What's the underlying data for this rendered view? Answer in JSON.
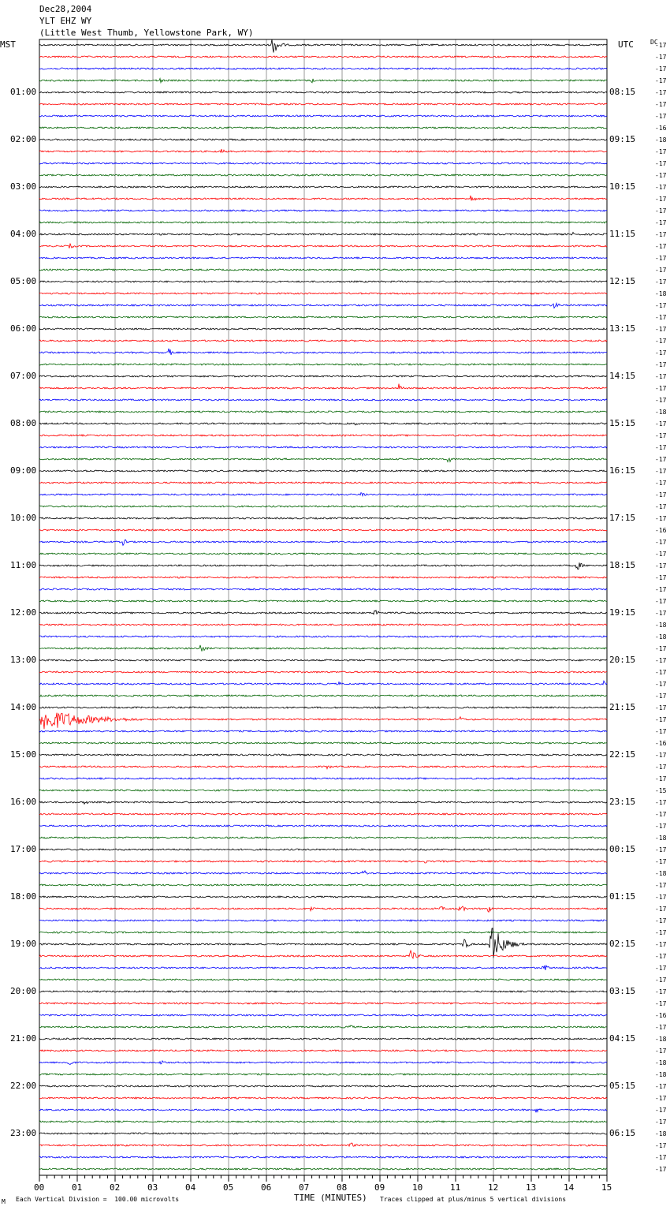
{
  "header": {
    "date": "Dec28,2004",
    "station": "YLT EHZ WY",
    "location": "(Little West Thumb, Yellowstone Park, WY)"
  },
  "axis_labels": {
    "left": "MST",
    "right": "UTC",
    "dc": "DC"
  },
  "footer": {
    "scale": "Each Vertical Division =  100.00 microvolts",
    "xlabel": "TIME (MINUTES)",
    "clip": "Traces clipped at plus/minus 5 vertical divisions",
    "corner": "M"
  },
  "chart_data": {
    "type": "line",
    "title": "YLT EHZ WY",
    "xlabel": "TIME (MINUTES)",
    "xlim": [
      0,
      15
    ],
    "x_ticks": [
      "00",
      "01",
      "02",
      "03",
      "04",
      "05",
      "06",
      "07",
      "08",
      "09",
      "10",
      "11",
      "12",
      "13",
      "14",
      "15"
    ],
    "trace_count": 96,
    "trace_colors": [
      "#000000",
      "#ff0000",
      "#0000ff",
      "#006400"
    ],
    "mst_labels": [
      "01:00",
      "02:00",
      "03:00",
      "04:00",
      "05:00",
      "06:00",
      "07:00",
      "08:00",
      "09:00",
      "10:00",
      "11:00",
      "12:00",
      "13:00",
      "14:00",
      "15:00",
      "16:00",
      "17:00",
      "18:00",
      "19:00",
      "20:00",
      "21:00",
      "22:00",
      "23:00"
    ],
    "utc_labels": [
      "08:15",
      "09:15",
      "10:15",
      "11:15",
      "12:15",
      "13:15",
      "14:15",
      "15:15",
      "16:15",
      "17:15",
      "18:15",
      "19:15",
      "20:15",
      "21:15",
      "22:15",
      "23:15",
      "00:15",
      "01:15",
      "02:15",
      "03:15",
      "04:15",
      "05:15",
      "06:15"
    ],
    "dc_offsets": [
      "-17",
      "-17",
      "-17",
      "-17",
      "-17",
      "-17",
      "-17",
      "-16",
      "-18",
      "-17",
      "-17",
      "-17",
      "-17",
      "-17",
      "-17",
      "-17",
      "-17",
      "-17",
      "-17",
      "-17",
      "-17",
      "-18",
      "-17",
      "-17",
      "-17",
      "-17",
      "-17",
      "-17",
      "-17",
      "-17",
      "-17",
      "-18",
      "-17",
      "-17",
      "-17",
      "-17",
      "-17",
      "-17",
      "-17",
      "-17",
      "-17",
      "-16",
      "-17",
      "-17",
      "-17",
      "-17",
      "-17",
      "-17",
      "-17",
      "-18",
      "-18",
      "-17",
      "-17",
      "-17",
      "-17",
      "-17",
      "-17",
      "-17",
      "-17",
      "-16",
      "-17",
      "-17",
      "-17",
      "-15",
      "-17",
      "-17",
      "-17",
      "-18",
      "-17",
      "-17",
      "-18",
      "-17",
      "-17",
      "-17",
      "-17",
      "-17",
      "-17",
      "-17",
      "-17",
      "-17",
      "-17",
      "-17",
      "-16",
      "-17",
      "-18",
      "-17",
      "-18",
      "-18",
      "-17",
      "-17",
      "-17",
      "-17",
      "-18",
      "-17",
      "-17",
      "-17"
    ],
    "events": [
      {
        "trace": 0,
        "minute": 6.15,
        "amp": 14,
        "dur": 0.5
      },
      {
        "trace": 3,
        "minute": 3.2,
        "amp": 5,
        "dur": 0.2
      },
      {
        "trace": 3,
        "minute": 7.2,
        "amp": 4,
        "dur": 0.2
      },
      {
        "trace": 9,
        "minute": 4.8,
        "amp": 4,
        "dur": 0.3
      },
      {
        "trace": 13,
        "minute": 11.4,
        "amp": 6,
        "dur": 0.3
      },
      {
        "trace": 16,
        "minute": 14.1,
        "amp": 4,
        "dur": 0.3
      },
      {
        "trace": 17,
        "minute": 0.8,
        "amp": 4,
        "dur": 0.3
      },
      {
        "trace": 22,
        "minute": 13.6,
        "amp": 6,
        "dur": 0.3
      },
      {
        "trace": 26,
        "minute": 3.4,
        "amp": 7,
        "dur": 0.3
      },
      {
        "trace": 29,
        "minute": 9.5,
        "amp": 6,
        "dur": 0.4
      },
      {
        "trace": 32,
        "minute": 8.3,
        "amp": 4,
        "dur": 0.3
      },
      {
        "trace": 35,
        "minute": 10.8,
        "amp": 6,
        "dur": 0.3
      },
      {
        "trace": 38,
        "minute": 8.5,
        "amp": 6,
        "dur": 0.3
      },
      {
        "trace": 42,
        "minute": 2.2,
        "amp": 5,
        "dur": 0.4
      },
      {
        "trace": 44,
        "minute": 14.2,
        "amp": 7,
        "dur": 0.4
      },
      {
        "trace": 48,
        "minute": 8.85,
        "amp": 7,
        "dur": 0.3
      },
      {
        "trace": 51,
        "minute": 4.25,
        "amp": 6,
        "dur": 0.4
      },
      {
        "trace": 54,
        "minute": 7.9,
        "amp": 4,
        "dur": 0.2
      },
      {
        "trace": 54,
        "minute": 14.9,
        "amp": 5,
        "dur": 0.2
      },
      {
        "trace": 57,
        "minute": 0.05,
        "amp": 16,
        "dur": 3.2
      },
      {
        "trace": 57,
        "minute": 11.1,
        "amp": 5,
        "dur": 0.3
      },
      {
        "trace": 61,
        "minute": 7.6,
        "amp": 4,
        "dur": 0.3
      },
      {
        "trace": 64,
        "minute": 1.2,
        "amp": 5,
        "dur": 0.2
      },
      {
        "trace": 69,
        "minute": 10.2,
        "amp": 4,
        "dur": 0.1
      },
      {
        "trace": 70,
        "minute": 8.55,
        "amp": 6,
        "dur": 0.3
      },
      {
        "trace": 73,
        "minute": 7.15,
        "amp": 5,
        "dur": 0.3
      },
      {
        "trace": 73,
        "minute": 10.6,
        "amp": 4,
        "dur": 0.3
      },
      {
        "trace": 73,
        "minute": 11.1,
        "amp": 6,
        "dur": 0.4
      },
      {
        "trace": 73,
        "minute": 11.85,
        "amp": 8,
        "dur": 0.2
      },
      {
        "trace": 76,
        "minute": 11.2,
        "amp": 8,
        "dur": 0.4
      },
      {
        "trace": 76,
        "minute": 11.9,
        "amp": 30,
        "dur": 0.9
      },
      {
        "trace": 77,
        "minute": 9.8,
        "amp": 8,
        "dur": 0.5
      },
      {
        "trace": 78,
        "minute": 13.3,
        "amp": 8,
        "dur": 0.3
      },
      {
        "trace": 83,
        "minute": 8.2,
        "amp": 4,
        "dur": 0.3
      },
      {
        "trace": 86,
        "minute": 0.75,
        "amp": 7,
        "dur": 0.3
      },
      {
        "trace": 86,
        "minute": 3.2,
        "amp": 6,
        "dur": 0.3
      },
      {
        "trace": 90,
        "minute": 13.1,
        "amp": 5,
        "dur": 0.3
      },
      {
        "trace": 93,
        "minute": 8.2,
        "amp": 5,
        "dur": 0.4
      }
    ]
  }
}
